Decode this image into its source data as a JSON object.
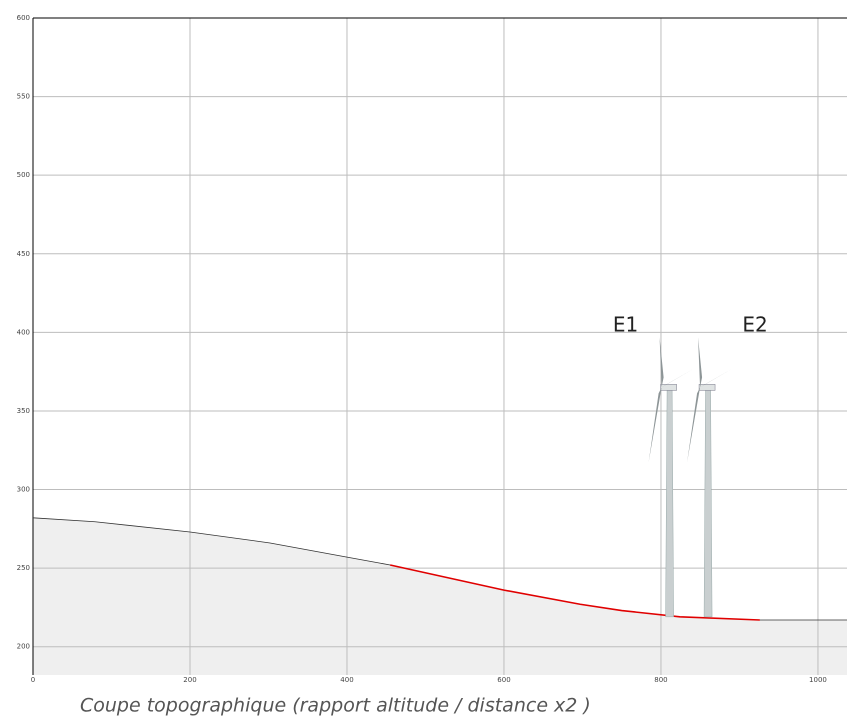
{
  "chart_data": {
    "type": "line",
    "caption": "Coupe topographique (rapport altitude / distance x2 )",
    "x": [
      0,
      79,
      200,
      302,
      400,
      455,
      600,
      697,
      750,
      824,
      926,
      1000,
      1037
    ],
    "series": [
      {
        "color": "#333333",
        "values": [
          282,
          279.5,
          273,
          266,
          257,
          252,
          null,
          null,
          null,
          null,
          217,
          217,
          217
        ]
      },
      {
        "color": "#e00000",
        "values": [
          null,
          null,
          null,
          null,
          null,
          252,
          236,
          227,
          223,
          219,
          217,
          null,
          null
        ]
      }
    ],
    "fill_color": "#efefef",
    "turbines": [
      {
        "label": "E1",
        "x": 811,
        "base": 219,
        "hub": 365
      },
      {
        "label": "E2",
        "x": 860,
        "base": 219,
        "hub": 365
      }
    ],
    "xlim": [
      0,
      1037
    ],
    "ylim": [
      182,
      600
    ],
    "xticks": [
      0,
      200,
      400,
      600,
      800,
      1000
    ],
    "yticks": [
      200,
      250,
      300,
      350,
      400,
      450,
      500,
      550,
      600
    ],
    "grid": true
  }
}
